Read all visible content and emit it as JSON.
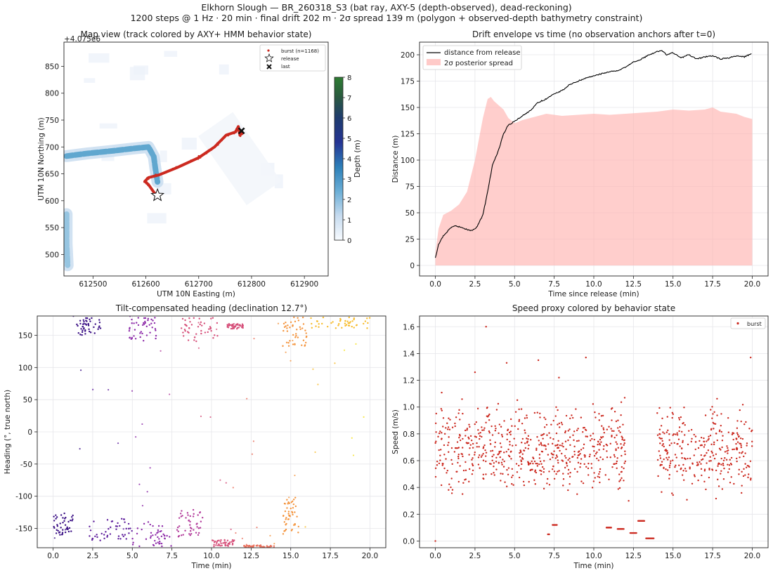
{
  "suptitle": {
    "line1": "Elkhorn Slough — BR_260318_S3 (bat ray, AXY-5 (depth-observed), dead-reckoning)",
    "line2": "1200 steps @ 1 Hz · 20 min · final drift 202 m · 2σ spread 139 m   (polygon + observed-depth bathymetry constraint)"
  },
  "chart_data": [
    {
      "type": "scatter",
      "title": "Map view (track colored by AXY+ HMM behavior state)",
      "xlabel": "UTM 10N Easting (m)",
      "ylabel": "UTM 10N Northing (m)",
      "offset_label": "+4.075e6",
      "xlim": [
        612445,
        612945
      ],
      "ylim": [
        460,
        895
      ],
      "xticks": [
        612500,
        612600,
        612700,
        612800,
        612900
      ],
      "yticks": [
        500,
        550,
        600,
        650,
        700,
        750,
        800,
        850
      ],
      "grid": false,
      "legend": {
        "position": "top-right",
        "entries": [
          "burst (n=1168)",
          "release",
          "last"
        ]
      },
      "colorbar": {
        "label": "Depth (m)",
        "range": [
          0,
          8
        ],
        "ticks": [
          0,
          1,
          2,
          3,
          4,
          5,
          6,
          7,
          8
        ]
      },
      "track_color": "#cc2a20",
      "track": [
        [
          612620,
          609
        ],
        [
          612605,
          630
        ],
        [
          612598,
          636
        ],
        [
          612605,
          643
        ],
        [
          612625,
          648
        ],
        [
          612660,
          662
        ],
        [
          612700,
          680
        ],
        [
          612730,
          700
        ],
        [
          612742,
          712
        ],
        [
          612752,
          722
        ],
        [
          612770,
          728
        ],
        [
          612775,
          738
        ],
        [
          612778,
          722
        ],
        [
          612783,
          726
        ]
      ],
      "release": [
        612622,
        610
      ],
      "last": [
        612781,
        730
      ],
      "channels": [
        {
          "depth": 2.2,
          "points": [
            [
              612450,
              683
            ],
            [
              612490,
              688
            ],
            [
              612540,
              693
            ],
            [
              612575,
              697
            ],
            [
              612605,
              700
            ],
            [
              612615,
              682
            ],
            [
              612618,
              660
            ],
            [
              612622,
              635
            ]
          ]
        },
        {
          "depth": 1.6,
          "points": [
            [
              612450,
              575
            ],
            [
              612450,
              520
            ],
            [
              612452,
              480
            ]
          ]
        }
      ]
    },
    {
      "type": "line",
      "title": "Drift envelope vs time (no observation anchors after t=0)",
      "xlabel": "Time since release (min)",
      "ylabel": "Distance (m)",
      "xlim": [
        -1,
        21
      ],
      "ylim": [
        -10,
        212
      ],
      "xticks": [
        0.0,
        2.5,
        5.0,
        7.5,
        10.0,
        12.5,
        15.0,
        17.5,
        20.0
      ],
      "yticks": [
        0,
        25,
        50,
        75,
        100,
        125,
        150,
        175,
        200
      ],
      "grid": true,
      "legend": {
        "position": "top-left"
      },
      "series": [
        {
          "name": "distance from release",
          "color": "#000000",
          "x": [
            0,
            0.2,
            0.5,
            0.8,
            1.0,
            1.3,
            1.6,
            2.0,
            2.3,
            2.6,
            3.0,
            3.3,
            3.6,
            4.0,
            4.3,
            4.6,
            5.0,
            5.5,
            6.0,
            6.5,
            7.0,
            7.5,
            8.0,
            8.5,
            9.0,
            9.5,
            10.0,
            10.5,
            11.0,
            11.5,
            12.0,
            12.5,
            13.0,
            13.5,
            14.0,
            14.3,
            14.6,
            15.0,
            15.5,
            16.0,
            16.5,
            17.0,
            17.5,
            18.0,
            18.5,
            19.0,
            19.5,
            19.8,
            20.0
          ],
          "y": [
            7,
            20,
            28,
            33,
            36,
            38,
            36,
            34,
            33,
            36,
            48,
            70,
            95,
            110,
            125,
            133,
            137,
            142,
            147,
            155,
            158,
            163,
            166,
            172,
            175,
            178,
            180,
            182,
            184,
            185,
            188,
            193,
            196,
            200,
            203,
            204,
            200,
            202,
            197,
            200,
            196,
            198,
            199,
            196,
            197,
            199,
            198,
            200,
            202
          ]
        },
        {
          "name": "2σ posterior spread",
          "color": "#ffb3b0",
          "kind": "area",
          "x": [
            0,
            0.2,
            0.5,
            1.0,
            1.5,
            2.0,
            2.5,
            3.0,
            3.3,
            3.5,
            3.7,
            4.0,
            4.3,
            4.6,
            5.0,
            5.5,
            6.0,
            6.5,
            7.0,
            8.0,
            9.0,
            10.0,
            11.0,
            12.0,
            13.0,
            14.0,
            15.0,
            16.0,
            17.0,
            17.5,
            18.0,
            19.0,
            19.5,
            20.0
          ],
          "y": [
            12,
            35,
            48,
            52,
            58,
            70,
            100,
            140,
            158,
            160,
            156,
            152,
            148,
            140,
            135,
            138,
            140,
            142,
            144,
            142,
            143,
            144,
            143,
            144,
            145,
            146,
            148,
            147,
            148,
            150,
            146,
            144,
            141,
            139
          ]
        }
      ]
    },
    {
      "type": "scatter",
      "title": "Tilt-compensated heading (declination 12.7°)",
      "xlabel": "Time (min)",
      "ylabel": "Heading (°, true north)",
      "xlim": [
        -1,
        21
      ],
      "ylim": [
        -180,
        180
      ],
      "xticks": [
        0.0,
        2.5,
        5.0,
        7.5,
        10.0,
        12.5,
        15.0,
        17.5,
        20.0
      ],
      "yticks": [
        -150,
        -100,
        -50,
        0,
        50,
        100,
        150
      ],
      "grid": true,
      "palette": [
        "#3a0f85",
        "#5d1c9c",
        "#8c29a8",
        "#b23a9a",
        "#d6507a",
        "#ea6f5c",
        "#f4943d",
        "#f7bb2a",
        "#f5e122"
      ],
      "clusters": [
        {
          "t": [
            0.0,
            1.3
          ],
          "h": [
            -160,
            -125
          ],
          "c": 0
        },
        {
          "t": [
            1.5,
            3.0
          ],
          "h": [
            150,
            178
          ],
          "c": 0
        },
        {
          "t": [
            2.3,
            5.0
          ],
          "h": [
            -170,
            -135
          ],
          "c": 1
        },
        {
          "t": [
            4.8,
            6.5
          ],
          "h": [
            140,
            178
          ],
          "c": 2
        },
        {
          "t": [
            5.0,
            7.5
          ],
          "h": [
            -178,
            -140
          ],
          "c": 2
        },
        {
          "t": [
            7.8,
            9.5
          ],
          "h": [
            -165,
            -120
          ],
          "c": 3
        },
        {
          "t": [
            8.0,
            10.5
          ],
          "h": [
            140,
            178
          ],
          "c": 4
        },
        {
          "t": [
            10.0,
            11.5
          ],
          "h": [
            -178,
            -168
          ],
          "c": 4
        },
        {
          "t": [
            11.0,
            12.0
          ],
          "h": [
            160,
            168
          ],
          "c": 4
        },
        {
          "t": [
            12.0,
            14.0
          ],
          "h": [
            -180,
            -176
          ],
          "c": 5
        },
        {
          "t": [
            14.5,
            16.0
          ],
          "h": [
            130,
            178
          ],
          "c": 6
        },
        {
          "t": [
            14.5,
            15.5
          ],
          "h": [
            -160,
            -100
          ],
          "c": 6
        },
        {
          "t": [
            16.0,
            20.0
          ],
          "h": [
            160,
            178
          ],
          "c": 7
        }
      ]
    },
    {
      "type": "scatter",
      "title": "Speed proxy colored by behavior state",
      "xlabel": "Time (min)",
      "ylabel": "Speed (m/s)",
      "xlim": [
        -1,
        21
      ],
      "ylim": [
        -0.05,
        1.68
      ],
      "xticks": [
        0.0,
        2.5,
        5.0,
        7.5,
        10.0,
        12.5,
        15.0,
        17.5,
        20.0
      ],
      "yticks": [
        0.0,
        0.2,
        0.4,
        0.6,
        0.8,
        1.0,
        1.2,
        1.4,
        1.6
      ],
      "grid": true,
      "legend": {
        "position": "top-right",
        "entries": [
          "burst"
        ]
      },
      "color": "#cc2a20",
      "bands": [
        {
          "t": [
            0.0,
            12.0
          ],
          "v": [
            0.35,
            1.2
          ]
        },
        {
          "t": [
            14.0,
            20.0
          ],
          "v": [
            0.3,
            1.2
          ]
        }
      ],
      "low_segments": [
        {
          "t": [
            7.1,
            7.2
          ],
          "v": 0.05
        },
        {
          "t": [
            7.4,
            7.7
          ],
          "v": 0.12
        },
        {
          "t": [
            10.8,
            11.1
          ],
          "v": 0.1
        },
        {
          "t": [
            11.5,
            11.9
          ],
          "v": 0.09
        },
        {
          "t": [
            12.3,
            12.7
          ],
          "v": 0.06
        },
        {
          "t": [
            12.8,
            13.2
          ],
          "v": 0.15
        },
        {
          "t": [
            13.3,
            13.8
          ],
          "v": 0.02
        }
      ],
      "outliers": [
        [
          2.5,
          1.26
        ],
        [
          3.2,
          1.6
        ],
        [
          4.5,
          1.33
        ],
        [
          6.5,
          1.35
        ],
        [
          7.8,
          1.22
        ],
        [
          9.5,
          1.37
        ],
        [
          12.2,
          0.3
        ],
        [
          19.9,
          1.37
        ]
      ]
    }
  ]
}
